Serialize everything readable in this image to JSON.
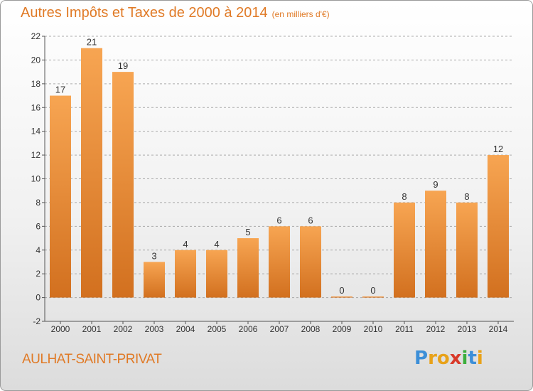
{
  "header": {
    "title": "Autres Impôts et Taxes de 2000 à 2014",
    "unit": "(en milliers d'€)"
  },
  "footer": {
    "commune": "AULHAT-SAINT-PRIVAT",
    "logo": {
      "letters": [
        "P",
        "r",
        "o",
        "x",
        "i",
        "t",
        "i"
      ],
      "colors": [
        "#3c8fd8",
        "#e8a21a",
        "#e8a21a",
        "#d83a2a",
        "#3cae3c",
        "#3c8fd8",
        "#e8a21a"
      ]
    }
  },
  "colors": {
    "accent": "#e07a26",
    "bar_top": "#f7a552",
    "bar_bottom": "#d2701f",
    "grid": "#999999"
  },
  "chart_data": {
    "type": "bar",
    "title": "Autres Impôts et Taxes de 2000 à 2014",
    "subtitle": "(en milliers d'€)",
    "xlabel": "",
    "ylabel": "",
    "categories": [
      "2000",
      "2001",
      "2002",
      "2003",
      "2004",
      "2005",
      "2006",
      "2007",
      "2008",
      "2009",
      "2010",
      "2011",
      "2012",
      "2013",
      "2014"
    ],
    "values": [
      17,
      21,
      19,
      3,
      4,
      4,
      5,
      6,
      6,
      0,
      0,
      8,
      9,
      8,
      12
    ],
    "data_labels": [
      "17",
      "21",
      "19",
      "3",
      "4",
      "4",
      "5",
      "6",
      "6",
      "0",
      "0",
      "8",
      "9",
      "8",
      "12"
    ],
    "ylim": [
      -2,
      22
    ],
    "yticks": [
      -2,
      0,
      2,
      4,
      6,
      8,
      10,
      12,
      14,
      16,
      18,
      20,
      22
    ],
    "grid": "horizontal dashed"
  }
}
